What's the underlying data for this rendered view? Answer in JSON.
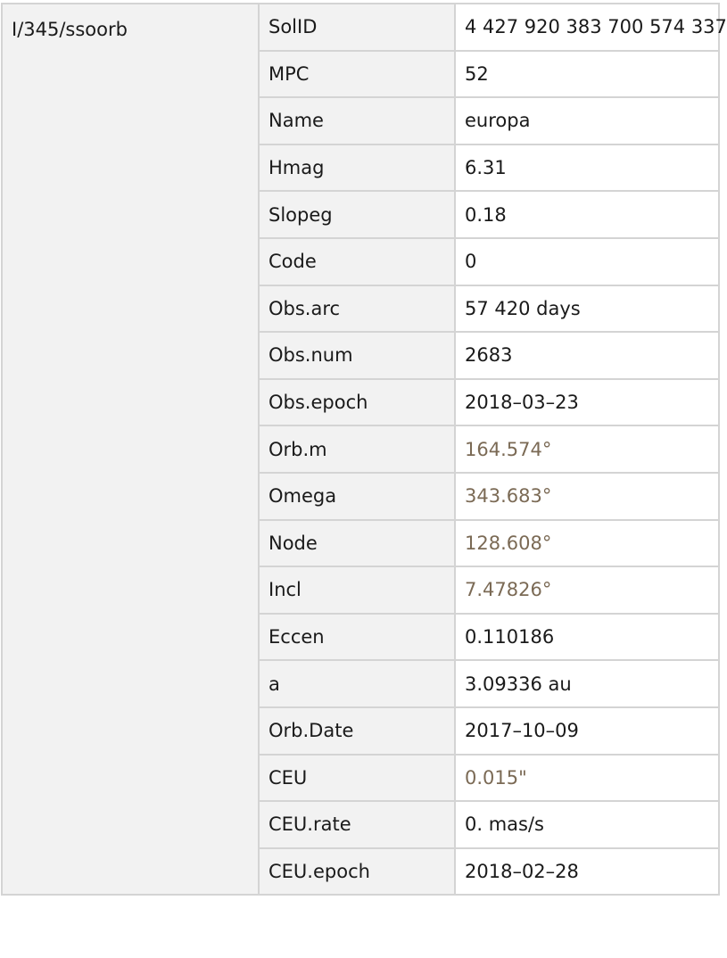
{
  "catalog": "I/345/ssoorb",
  "rows": [
    {
      "key": "SolID",
      "value": "4 427 920 383 700 574 337",
      "quantity": false
    },
    {
      "key": "MPC",
      "value": "52",
      "quantity": false
    },
    {
      "key": "Name",
      "value": "europa",
      "quantity": false
    },
    {
      "key": "Hmag",
      "value": "6.31",
      "quantity": false
    },
    {
      "key": "Slopeg",
      "value": "0.18",
      "quantity": false
    },
    {
      "key": "Code",
      "value": "0",
      "quantity": false
    },
    {
      "key": "Obs.arc",
      "value": "57 420 days",
      "quantity": false
    },
    {
      "key": "Obs.num",
      "value": "2683",
      "quantity": false
    },
    {
      "key": "Obs.epoch",
      "value": "2018–03–23",
      "quantity": false
    },
    {
      "key": "Orb.m",
      "value": "164.574°",
      "quantity": true
    },
    {
      "key": "Omega",
      "value": "343.683°",
      "quantity": true
    },
    {
      "key": "Node",
      "value": "128.608°",
      "quantity": true
    },
    {
      "key": "Incl",
      "value": "7.47826°",
      "quantity": true
    },
    {
      "key": "Eccen",
      "value": "0.110186",
      "quantity": false
    },
    {
      "key": "a",
      "value": "3.09336 au",
      "quantity": false
    },
    {
      "key": "Orb.Date",
      "value": "2017–10–09",
      "quantity": false
    },
    {
      "key": "CEU",
      "value": "0.015\"",
      "quantity": true
    },
    {
      "key": "CEU.rate",
      "value": "0. mas/s",
      "quantity": false
    },
    {
      "key": "CEU.epoch",
      "value": "2018–02–28",
      "quantity": false
    }
  ],
  "colors": {
    "angle_value": "#7b6a55",
    "header_bg": "#f2f2f2",
    "border": "#d4d4d4"
  }
}
